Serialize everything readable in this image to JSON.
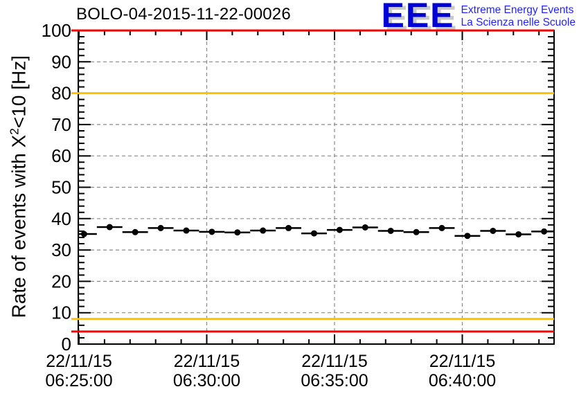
{
  "header": {
    "title": "BOLO-04-2015-11-22-00026",
    "logo": {
      "acronym": "EEE",
      "line1": "Extreme Energy Events",
      "line2": "La Scienza nelle Scuole"
    }
  },
  "chart_data": {
    "type": "scatter",
    "title": "BOLO-04-2015-11-22-00026",
    "xlabel": "",
    "ylabel_prefix": "Rate of events with X",
    "ylabel_sup": "2",
    "ylabel_suffix": "<10 [Hz]",
    "ylim": [
      0,
      100
    ],
    "y_tick_labels": [
      0,
      10,
      20,
      30,
      40,
      50,
      60,
      70,
      80,
      90,
      100
    ],
    "y_minor_step": 2,
    "grid": true,
    "legend": "none",
    "x_ticks": [
      {
        "date": "22/11/15",
        "time": "06:25:00",
        "minute_offset": 0
      },
      {
        "date": "22/11/15",
        "time": "06:30:00",
        "minute_offset": 5
      },
      {
        "date": "22/11/15",
        "time": "06:35:00",
        "minute_offset": 10
      },
      {
        "date": "22/11/15",
        "time": "06:40:00",
        "minute_offset": 15
      }
    ],
    "x_minor_step_minutes": 1,
    "threshold_lines": [
      {
        "value": 100,
        "color": "#ff0000",
        "kind": "alarm-high"
      },
      {
        "value": 80,
        "color": "#fcc200",
        "kind": "warning-high"
      },
      {
        "value": 8,
        "color": "#fcc200",
        "kind": "warning-low"
      },
      {
        "value": 4,
        "color": "#ff0000",
        "kind": "alarm-low"
      }
    ],
    "series": [
      {
        "name": "rate",
        "marker": "filled-circle",
        "color": "#000000",
        "x_error_minutes": 0.5,
        "x_minutes_after_06_25_00": [
          0,
          1,
          2,
          3,
          4,
          5,
          6,
          7,
          8,
          9,
          10,
          11,
          12,
          13,
          14,
          15,
          16,
          17,
          18
        ],
        "values": [
          35.1,
          37.3,
          35.7,
          37.0,
          36.2,
          35.8,
          35.6,
          36.2,
          37.0,
          35.3,
          36.4,
          37.2,
          36.1,
          35.7,
          37.0,
          34.5,
          36.1,
          35.0,
          35.9
        ]
      }
    ],
    "colors": {
      "frame": "#000000",
      "grid": "#888888",
      "marker": "#000000",
      "alarm": "#ff0000",
      "warning": "#fcc200",
      "logo_blue": "#0000d6",
      "logo_text_blue": "#2222ff",
      "logo_shadow": "#c9c9c9"
    }
  }
}
